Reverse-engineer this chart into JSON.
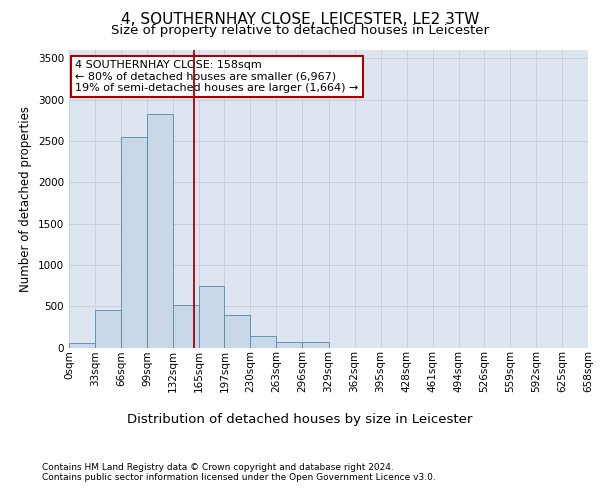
{
  "title_line1": "4, SOUTHERNHAY CLOSE, LEICESTER, LE2 3TW",
  "title_line2": "Size of property relative to detached houses in Leicester",
  "xlabel": "Distribution of detached houses by size in Leicester",
  "ylabel": "Number of detached properties",
  "footnote1": "Contains HM Land Registry data © Crown copyright and database right 2024.",
  "footnote2": "Contains public sector information licensed under the Open Government Licence v3.0.",
  "annotation_line1": "4 SOUTHERNHAY CLOSE: 158sqm",
  "annotation_line2": "← 80% of detached houses are smaller (6,967)",
  "annotation_line3": "19% of semi-detached houses are larger (1,664) →",
  "property_size": 158,
  "bin_edges": [
    0,
    33,
    66,
    99,
    132,
    165,
    197,
    230,
    263,
    296,
    329,
    362,
    395,
    428,
    461,
    494,
    526,
    559,
    592,
    625,
    658
  ],
  "bar_heights": [
    50,
    450,
    2550,
    2820,
    520,
    750,
    390,
    140,
    70,
    70,
    0,
    0,
    0,
    0,
    0,
    0,
    0,
    0,
    0,
    0
  ],
  "tick_labels": [
    "0sqm",
    "33sqm",
    "66sqm",
    "99sqm",
    "132sqm",
    "165sqm",
    "197sqm",
    "230sqm",
    "263sqm",
    "296sqm",
    "329sqm",
    "362sqm",
    "395sqm",
    "428sqm",
    "461sqm",
    "494sqm",
    "526sqm",
    "559sqm",
    "592sqm",
    "625sqm",
    "658sqm"
  ],
  "bar_color": "#c8d8e8",
  "bar_edge_color": "#5588aa",
  "vline_color": "#aa0000",
  "vline_x": 158,
  "ylim": [
    0,
    3600
  ],
  "yticks": [
    0,
    500,
    1000,
    1500,
    2000,
    2500,
    3000,
    3500
  ],
  "grid_color": "#c8d0da",
  "bg_color": "#dde6f0",
  "annotation_box_edgecolor": "#aa0000",
  "title_fontsize": 11,
  "subtitle_fontsize": 9.5,
  "ylabel_fontsize": 8.5,
  "xlabel_fontsize": 9.5,
  "tick_fontsize": 7.5,
  "annotation_fontsize": 8,
  "footnote_fontsize": 6.5
}
